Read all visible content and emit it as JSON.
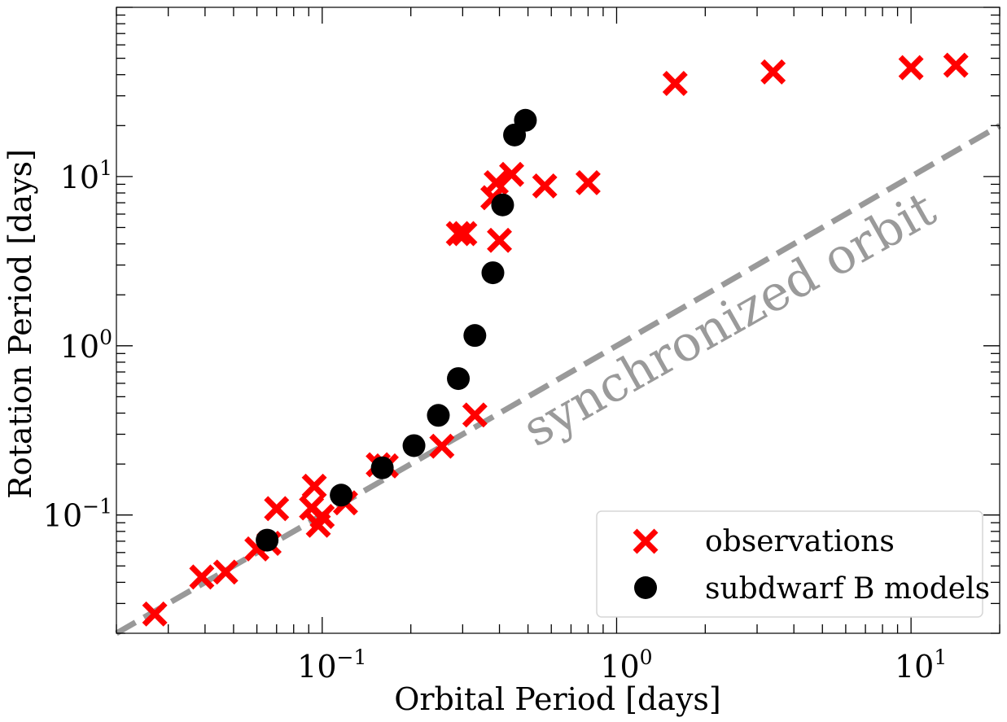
{
  "chart_data": {
    "type": "scatter",
    "xlabel": "Orbital Period [days]",
    "ylabel": "Rotation Period [days]",
    "xscale": "log",
    "yscale": "log",
    "xlim": [
      0.02,
      20
    ],
    "ylim": [
      0.02,
      100
    ],
    "xticks": [
      {
        "base": "10",
        "exp": "−1",
        "value": 0.1
      },
      {
        "base": "10",
        "exp": "0",
        "value": 1
      },
      {
        "base": "10",
        "exp": "1",
        "value": 10
      }
    ],
    "yticks": [
      {
        "base": "10",
        "exp": "−1",
        "value": 0.1
      },
      {
        "base": "10",
        "exp": "0",
        "value": 1
      },
      {
        "base": "10",
        "exp": "1",
        "value": 10
      }
    ],
    "grid": false,
    "legend_position": "lower-right",
    "series": [
      {
        "name": "observations",
        "marker": "x",
        "color": "#ff0000",
        "points": [
          [
            0.027,
            0.026
          ],
          [
            0.039,
            0.043
          ],
          [
            0.047,
            0.046
          ],
          [
            0.06,
            0.063
          ],
          [
            0.066,
            0.068
          ],
          [
            0.07,
            0.109
          ],
          [
            0.092,
            0.11
          ],
          [
            0.094,
            0.148
          ],
          [
            0.097,
            0.087
          ],
          [
            0.1,
            0.098
          ],
          [
            0.12,
            0.118
          ],
          [
            0.155,
            0.198
          ],
          [
            0.165,
            0.195
          ],
          [
            0.255,
            0.255
          ],
          [
            0.29,
            4.6
          ],
          [
            0.305,
            4.6
          ],
          [
            0.33,
            0.39
          ],
          [
            0.38,
            7.5
          ],
          [
            0.39,
            9.2
          ],
          [
            0.4,
            4.2
          ],
          [
            0.44,
            10.3
          ],
          [
            0.57,
            8.8
          ],
          [
            0.8,
            9.2
          ],
          [
            1.58,
            35.5
          ],
          [
            3.4,
            41.5
          ],
          [
            10.0,
            44.0
          ],
          [
            14.2,
            45.5
          ]
        ]
      },
      {
        "name": "subdwarf B models",
        "marker": "o",
        "color": "#000000",
        "points": [
          [
            0.065,
            0.071
          ],
          [
            0.116,
            0.131
          ],
          [
            0.16,
            0.19
          ],
          [
            0.205,
            0.257
          ],
          [
            0.248,
            0.388
          ],
          [
            0.29,
            0.64
          ],
          [
            0.33,
            1.15
          ],
          [
            0.38,
            2.7
          ],
          [
            0.41,
            6.8
          ],
          [
            0.45,
            17.6
          ],
          [
            0.49,
            21.5
          ]
        ]
      }
    ],
    "reference_line": {
      "label": "synchronized orbit",
      "equation": "y = x",
      "color": "#999999",
      "style": "dashed"
    }
  }
}
